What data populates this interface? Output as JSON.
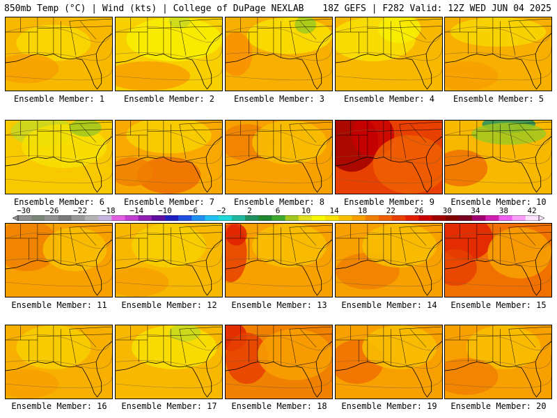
{
  "header": {
    "left": "850mb Temp (°C) | Wind (kts) | College of DuPage NEXLAB",
    "right": "18Z GEFS | F282 Valid: 12Z WED JUN 04 2025"
  },
  "colorbar": {
    "tick_labels": [
      "-30",
      "-26",
      "-22",
      "-18",
      "-14",
      "-10",
      "-6",
      "-2",
      "2",
      "6",
      "10",
      "14",
      "18",
      "22",
      "26",
      "30",
      "34",
      "38",
      "42"
    ],
    "colors": [
      "#909090",
      "#7a8878",
      "#909090",
      "#7a7a7a",
      "#9a9a9a",
      "#b4b4b4",
      "#c8b4e0",
      "#e060e0",
      "#c040d0",
      "#9020b0",
      "#6010a0",
      "#2020c0",
      "#2050e0",
      "#2090f0",
      "#20c0f0",
      "#20d8d8",
      "#20b8a0",
      "#209060",
      "#208830",
      "#40a830",
      "#a0c820",
      "#e0e020",
      "#f8f800",
      "#f8e000",
      "#f8c000",
      "#f8a000",
      "#f08000",
      "#f06000",
      "#e84000",
      "#e02000",
      "#c80000",
      "#a00000",
      "#800000",
      "#780020",
      "#a00070",
      "#d020b0",
      "#f060f0",
      "#f8a0f8",
      "#fce0fc"
    ]
  },
  "panels": [
    {
      "label": "Ensemble Member: 1",
      "base": "#f8b800",
      "blobs": [
        [
          "#f8d800",
          0.45,
          0.35,
          0.35,
          0.25
        ],
        [
          "#f8a000",
          0.2,
          0.7,
          0.3,
          0.2
        ]
      ]
    },
    {
      "label": "Ensemble Member: 2",
      "base": "#f8d000",
      "blobs": [
        [
          "#f8f000",
          0.55,
          0.3,
          0.45,
          0.3
        ],
        [
          "#f8a000",
          0.3,
          0.8,
          0.4,
          0.2
        ],
        [
          "#c8d820",
          0.6,
          0.05,
          0.1,
          0.1
        ]
      ]
    },
    {
      "label": "Ensemble Member: 3",
      "base": "#f8b000",
      "blobs": [
        [
          "#f8e000",
          0.6,
          0.25,
          0.4,
          0.25
        ],
        [
          "#a0c820",
          0.75,
          0.1,
          0.1,
          0.12
        ],
        [
          "#f89000",
          0.1,
          0.5,
          0.15,
          0.3
        ]
      ]
    },
    {
      "label": "Ensemble Member: 4",
      "base": "#f8b800",
      "blobs": [
        [
          "#f8e000",
          0.35,
          0.3,
          0.4,
          0.3
        ],
        [
          "#f8f000",
          0.6,
          0.15,
          0.2,
          0.2
        ]
      ]
    },
    {
      "label": "Ensemble Member: 5",
      "base": "#f8b000",
      "blobs": [
        [
          "#f8d800",
          0.5,
          0.2,
          0.45,
          0.2
        ],
        [
          "#f8a000",
          0.2,
          0.8,
          0.3,
          0.2
        ]
      ]
    },
    {
      "label": "Ensemble Member: 6",
      "base": "#f8c800",
      "blobs": [
        [
          "#c8d820",
          0.35,
          0.15,
          0.3,
          0.2
        ],
        [
          "#f8e000",
          0.55,
          0.35,
          0.4,
          0.3
        ],
        [
          "#a0c820",
          0.75,
          0.1,
          0.15,
          0.12
        ]
      ]
    },
    {
      "label": "Ensemble Member: 7",
      "base": "#f8a800",
      "blobs": [
        [
          "#f8d000",
          0.5,
          0.2,
          0.4,
          0.25
        ],
        [
          "#f07000",
          0.5,
          0.75,
          0.3,
          0.25
        ],
        [
          "#f08000",
          0.15,
          0.7,
          0.2,
          0.2
        ]
      ]
    },
    {
      "label": "Ensemble Member: 8",
      "base": "#f8a000",
      "blobs": [
        [
          "#f08000",
          0.2,
          0.3,
          0.25,
          0.25
        ],
        [
          "#f8c000",
          0.6,
          0.3,
          0.35,
          0.3
        ]
      ]
    },
    {
      "label": "Ensemble Member: 9",
      "base": "#e84000",
      "blobs": [
        [
          "#a00000",
          0.15,
          0.3,
          0.25,
          0.4
        ],
        [
          "#c80000",
          0.35,
          0.2,
          0.2,
          0.3
        ],
        [
          "#f06000",
          0.7,
          0.6,
          0.35,
          0.4
        ]
      ]
    },
    {
      "label": "Ensemble Member: 10",
      "base": "#f8b800",
      "blobs": [
        [
          "#209060",
          0.6,
          0.05,
          0.25,
          0.12
        ],
        [
          "#a0c820",
          0.6,
          0.18,
          0.35,
          0.15
        ],
        [
          "#f07000",
          0.15,
          0.65,
          0.25,
          0.25
        ]
      ]
    },
    {
      "label": "Ensemble Member: 11",
      "base": "#f8a000",
      "blobs": [
        [
          "#f08000",
          0.2,
          0.3,
          0.3,
          0.35
        ],
        [
          "#f8c000",
          0.65,
          0.35,
          0.3,
          0.3
        ]
      ]
    },
    {
      "label": "Ensemble Member: 12",
      "base": "#f8b800",
      "blobs": [
        [
          "#f8d000",
          0.5,
          0.3,
          0.35,
          0.3
        ],
        [
          "#f8a000",
          0.2,
          0.8,
          0.3,
          0.2
        ]
      ]
    },
    {
      "label": "Ensemble Member: 13",
      "base": "#f8a000",
      "blobs": [
        [
          "#e84000",
          0.05,
          0.4,
          0.15,
          0.4
        ],
        [
          "#e02000",
          0.1,
          0.15,
          0.1,
          0.15
        ],
        [
          "#f8c000",
          0.6,
          0.3,
          0.35,
          0.3
        ]
      ]
    },
    {
      "label": "Ensemble Member: 14",
      "base": "#f8a000",
      "blobs": [
        [
          "#f08000",
          0.3,
          0.65,
          0.3,
          0.25
        ],
        [
          "#f8c000",
          0.6,
          0.3,
          0.35,
          0.3
        ]
      ]
    },
    {
      "label": "Ensemble Member: 15",
      "base": "#f07000",
      "blobs": [
        [
          "#e02000",
          0.2,
          0.2,
          0.25,
          0.3
        ],
        [
          "#e84000",
          0.1,
          0.6,
          0.2,
          0.25
        ],
        [
          "#f8a000",
          0.7,
          0.4,
          0.3,
          0.35
        ]
      ]
    },
    {
      "label": "Ensemble Member: 16",
      "base": "#f8b000",
      "blobs": [
        [
          "#f8d000",
          0.45,
          0.3,
          0.35,
          0.3
        ],
        [
          "#f8a000",
          0.2,
          0.8,
          0.3,
          0.2
        ]
      ]
    },
    {
      "label": "Ensemble Member: 17",
      "base": "#f8b800",
      "blobs": [
        [
          "#f8e000",
          0.55,
          0.3,
          0.4,
          0.3
        ],
        [
          "#c8d820",
          0.65,
          0.1,
          0.15,
          0.12
        ]
      ]
    },
    {
      "label": "Ensemble Member: 18",
      "base": "#f08000",
      "blobs": [
        [
          "#e02000",
          0.05,
          0.15,
          0.15,
          0.2
        ],
        [
          "#e84000",
          0.2,
          0.45,
          0.2,
          0.35
        ],
        [
          "#f8a000",
          0.65,
          0.4,
          0.35,
          0.35
        ]
      ]
    },
    {
      "label": "Ensemble Member: 19",
      "base": "#f8a000",
      "blobs": [
        [
          "#f07000",
          0.2,
          0.5,
          0.25,
          0.3
        ],
        [
          "#f8c000",
          0.6,
          0.3,
          0.35,
          0.3
        ]
      ]
    },
    {
      "label": "Ensemble Member: 20",
      "base": "#f8a000",
      "blobs": [
        [
          "#f8c000",
          0.55,
          0.3,
          0.35,
          0.3
        ],
        [
          "#f08000",
          0.2,
          0.7,
          0.3,
          0.25
        ]
      ]
    }
  ]
}
